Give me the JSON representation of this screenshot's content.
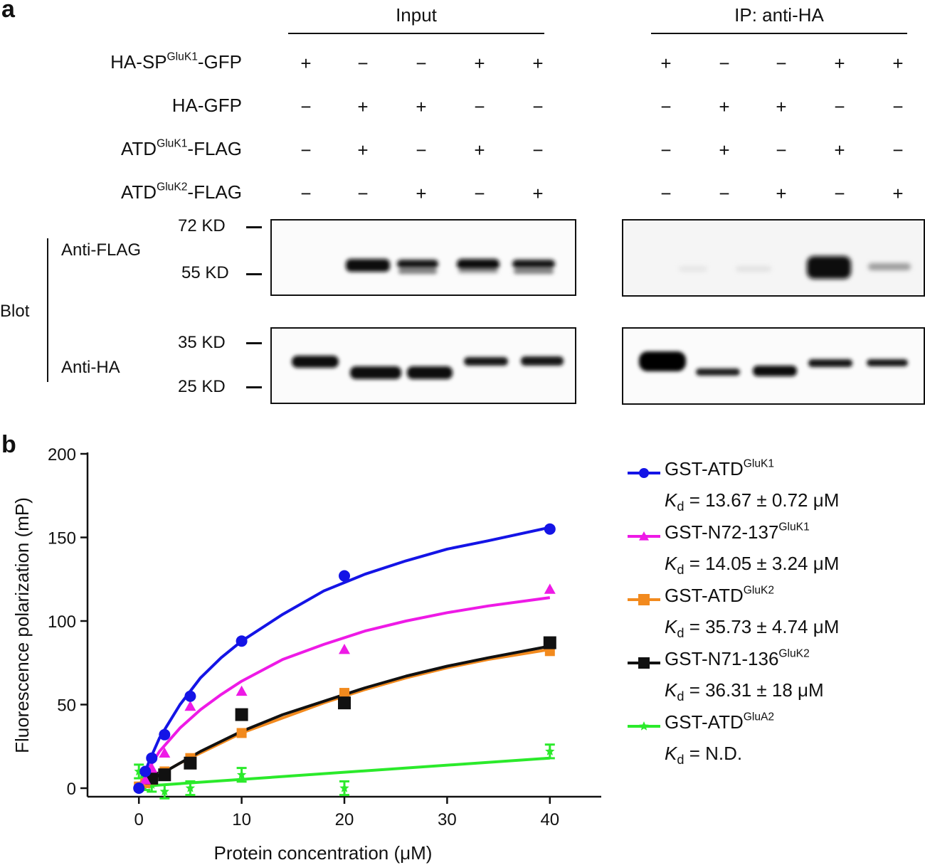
{
  "panel_a": {
    "letter": "a",
    "groups": [
      {
        "label": "Input"
      },
      {
        "label": "IP: anti-HA"
      }
    ],
    "rows": [
      {
        "base": "HA-SP",
        "sup": "GluK1",
        "suffix": "-GFP",
        "input": [
          "+",
          "−",
          "−",
          "+",
          "+"
        ],
        "ip": [
          "+",
          "−",
          "−",
          "+",
          "+"
        ]
      },
      {
        "base": "HA-GFP",
        "sup": "",
        "suffix": "",
        "input": [
          "−",
          "+",
          "+",
          "−",
          "−"
        ],
        "ip": [
          "−",
          "+",
          "+",
          "−",
          "−"
        ]
      },
      {
        "base": "ATD",
        "sup": "GluK1",
        "suffix": "-FLAG",
        "input": [
          "−",
          "+",
          "−",
          "+",
          "−"
        ],
        "ip": [
          "−",
          "+",
          "−",
          "+",
          "−"
        ]
      },
      {
        "base": "ATD",
        "sup": "GluK2",
        "suffix": "-FLAG",
        "input": [
          "−",
          "−",
          "+",
          "−",
          "+"
        ],
        "ip": [
          "−",
          "−",
          "+",
          "−",
          "+"
        ]
      }
    ],
    "markers": {
      "kd72": "72 KD",
      "kd55": "55 KD",
      "kd35": "35 KD",
      "kd25": "25 KD"
    },
    "blot_labels": {
      "blot": "Blot",
      "anti_flag": "Anti-FLAG",
      "anti_ha": "Anti-HA"
    }
  },
  "panel_b": {
    "letter": "b"
  },
  "chart_data": {
    "type": "scatter",
    "xlabel": "Protein concentration (μM)",
    "ylabel": "Fluorescence polarization (mP)",
    "xlim": [
      -5,
      45
    ],
    "ylim": [
      0,
      200
    ],
    "xticks": [
      0,
      10,
      20,
      30,
      40
    ],
    "yticks": [
      0,
      50,
      100,
      150,
      200
    ],
    "series": [
      {
        "name": "GST-ATD",
        "sup": "GluK1",
        "kd_value": "= 13.67 ± 0.72 μM",
        "color": "#1414e6",
        "marker": "circle",
        "x": [
          0,
          0.625,
          1.25,
          2.5,
          5,
          10,
          20,
          40
        ],
        "y": [
          0,
          10,
          18,
          32,
          55,
          88,
          127,
          155
        ],
        "fit": [
          [
            0,
            0
          ],
          [
            1,
            16
          ],
          [
            2,
            30
          ],
          [
            4,
            50
          ],
          [
            6,
            66
          ],
          [
            8,
            78
          ],
          [
            10,
            88
          ],
          [
            14,
            104
          ],
          [
            18,
            118
          ],
          [
            22,
            128
          ],
          [
            26,
            136
          ],
          [
            30,
            143
          ],
          [
            34,
            148
          ],
          [
            40,
            156
          ]
        ]
      },
      {
        "name": "GST-N72-137",
        "sup": "GluK1",
        "kd_value": "= 14.05 ± 3.24 μM",
        "color": "#ee1ae6",
        "marker": "triangle",
        "x": [
          0.625,
          1.25,
          2.5,
          5,
          10,
          20,
          40
        ],
        "y": [
          5,
          12,
          21,
          49,
          58,
          83,
          119
        ],
        "fit": [
          [
            0,
            0
          ],
          [
            1,
            12
          ],
          [
            2,
            22
          ],
          [
            4,
            36
          ],
          [
            6,
            47
          ],
          [
            8,
            56
          ],
          [
            10,
            64
          ],
          [
            14,
            77
          ],
          [
            18,
            86
          ],
          [
            22,
            94
          ],
          [
            26,
            100
          ],
          [
            30,
            105
          ],
          [
            34,
            109
          ],
          [
            40,
            114
          ]
        ]
      },
      {
        "name": "GST-ATD",
        "sup": "GluK2",
        "kd_value": "= 35.73 ± 4.74 μM",
        "color": "#f28a1e",
        "marker": "square",
        "x": [
          0,
          0.625,
          1.25,
          2.5,
          5,
          10,
          20,
          40
        ],
        "y": [
          1,
          3,
          5,
          10,
          18,
          33,
          57,
          82
        ],
        "fit": [
          [
            0,
            0
          ],
          [
            2,
            8
          ],
          [
            4,
            15
          ],
          [
            6,
            21
          ],
          [
            8,
            27
          ],
          [
            10,
            33
          ],
          [
            14,
            42
          ],
          [
            18,
            51
          ],
          [
            22,
            59
          ],
          [
            26,
            66
          ],
          [
            30,
            72
          ],
          [
            34,
            77
          ],
          [
            40,
            83
          ]
        ]
      },
      {
        "name": "GST-N71-136",
        "sup": "GluK2",
        "kd_value": "= 36.31 ± 18 μM",
        "color": "#111111",
        "marker": "square",
        "x": [
          1.25,
          2.5,
          5,
          10,
          20,
          40
        ],
        "y": [
          6,
          8,
          15,
          44,
          51,
          87
        ],
        "fit": [
          [
            0,
            0
          ],
          [
            2,
            8
          ],
          [
            4,
            15
          ],
          [
            6,
            22
          ],
          [
            8,
            28
          ],
          [
            10,
            34
          ],
          [
            14,
            44
          ],
          [
            18,
            52
          ],
          [
            22,
            60
          ],
          [
            26,
            67
          ],
          [
            30,
            73
          ],
          [
            34,
            78
          ],
          [
            40,
            85
          ]
        ]
      },
      {
        "name": "GST-ATD",
        "sup": "GluA2",
        "kd_value": "= N.D.",
        "color": "#2bea2b",
        "marker": "star",
        "x": [
          0,
          0.625,
          1.25,
          2.5,
          5,
          10,
          20,
          40
        ],
        "y": [
          10,
          3,
          2,
          -2,
          0,
          8,
          0,
          22
        ],
        "fit": [
          [
            0,
            1
          ],
          [
            40,
            18
          ]
        ]
      }
    ]
  }
}
